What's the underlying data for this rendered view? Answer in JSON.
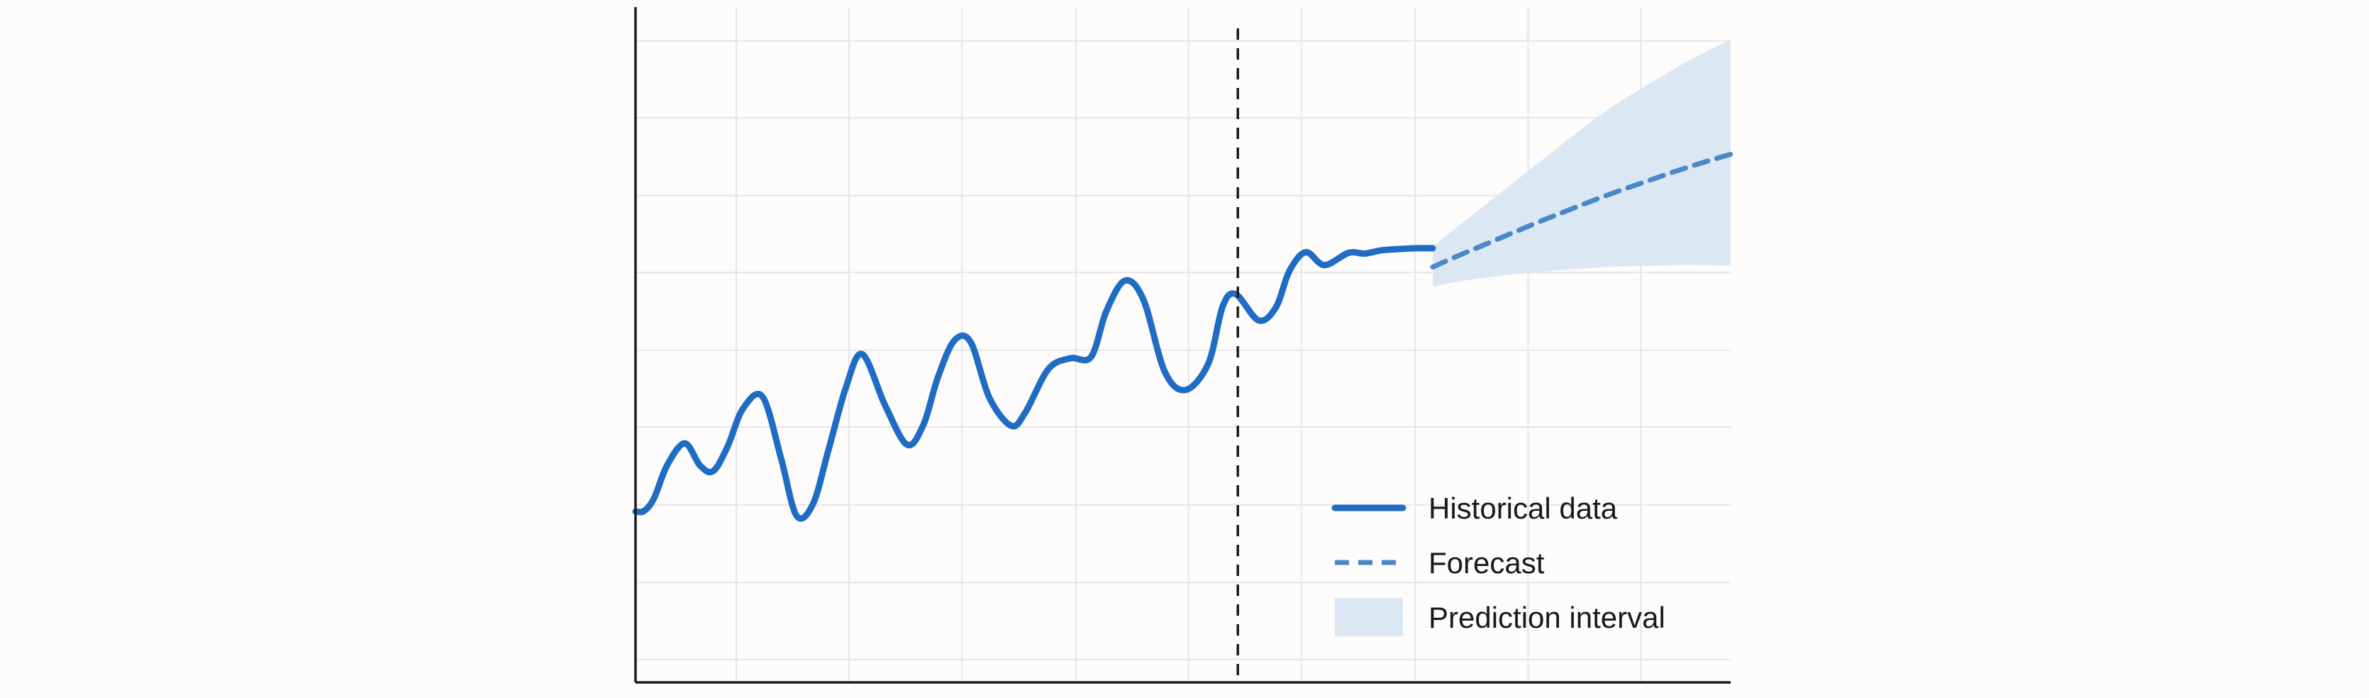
{
  "colors": {
    "historical": "#1f6cc4",
    "forecast": "#4a88c9",
    "interval": "#dbe8f4",
    "axis": "#1a1a1a",
    "grid": "#e6e6e6",
    "background": "#fdfcfb"
  },
  "chart_data": {
    "type": "line",
    "title": "",
    "xlabel": "",
    "ylabel": "",
    "xlim": [
      0,
      100
    ],
    "ylim": [
      0,
      100
    ],
    "grid": true,
    "tick_labels_shown": false,
    "forecast_start_x": 55,
    "legend": {
      "placement": "bottom-right",
      "entries": [
        {
          "label": "Historical data",
          "style": "solid-line"
        },
        {
          "label": "Forecast",
          "style": "dashed-line"
        },
        {
          "label": "Prediction interval",
          "style": "band"
        }
      ]
    },
    "series": [
      {
        "name": "Historical data",
        "x": [
          0,
          0.8,
          1.7,
          2.9,
          4.5,
          5.9,
          7.1,
          8.4,
          9.8,
          11.6,
          13.3,
          14.7,
          16.2,
          17.6,
          19.2,
          20.7,
          22.8,
          24.8,
          26.3,
          27.6,
          29.1,
          30.6,
          32.3,
          34.3,
          35.6,
          37.7,
          39.7,
          41.6,
          43.0,
          44.7,
          46.4,
          48.3,
          50.2,
          52.3,
          53.6,
          54.8,
          56.9,
          58.5,
          59.7,
          61.2,
          62.9,
          65.1,
          66.6,
          68.2,
          70.1,
          71.5,
          72.8
        ],
        "y": [
          25.3,
          25.4,
          27.3,
          32.2,
          35.4,
          32.1,
          31.3,
          34.9,
          40.5,
          42.3,
          33.1,
          24.7,
          26.4,
          34.3,
          43.6,
          48.6,
          41.0,
          35.2,
          38.2,
          45.1,
          50.6,
          50.4,
          42.2,
          38.0,
          40.0,
          46.4,
          48.0,
          48.2,
          55.0,
          59.5,
          56.6,
          46.1,
          43.3,
          47.2,
          55.6,
          57.5,
          53.6,
          55.6,
          60.9,
          63.7,
          61.8,
          63.6,
          63.5,
          64.0,
          64.2,
          64.3,
          64.3
        ]
      },
      {
        "name": "Forecast",
        "x": [
          72.8,
          75,
          77.5,
          80,
          82.5,
          85,
          87.5,
          90,
          92.5,
          95,
          97.5,
          100
        ],
        "y": [
          61.5,
          63.1,
          64.8,
          66.5,
          68.2,
          69.8,
          71.4,
          72.9,
          74.3,
          75.7,
          77.0,
          78.2
        ]
      }
    ],
    "interval": {
      "name": "Prediction interval",
      "x": [
        72.8,
        75,
        77.5,
        80,
        82.5,
        85,
        87.5,
        90,
        92.5,
        95,
        97.5,
        100
      ],
      "lower": [
        58.6,
        59.3,
        59.9,
        60.4,
        60.8,
        61.1,
        61.4,
        61.6,
        61.7,
        61.8,
        61.8,
        61.7
      ],
      "upper": [
        64.5,
        67.4,
        70.6,
        73.8,
        77.0,
        80.2,
        83.3,
        86.1,
        88.6,
        91.0,
        93.2,
        95.2
      ]
    }
  }
}
